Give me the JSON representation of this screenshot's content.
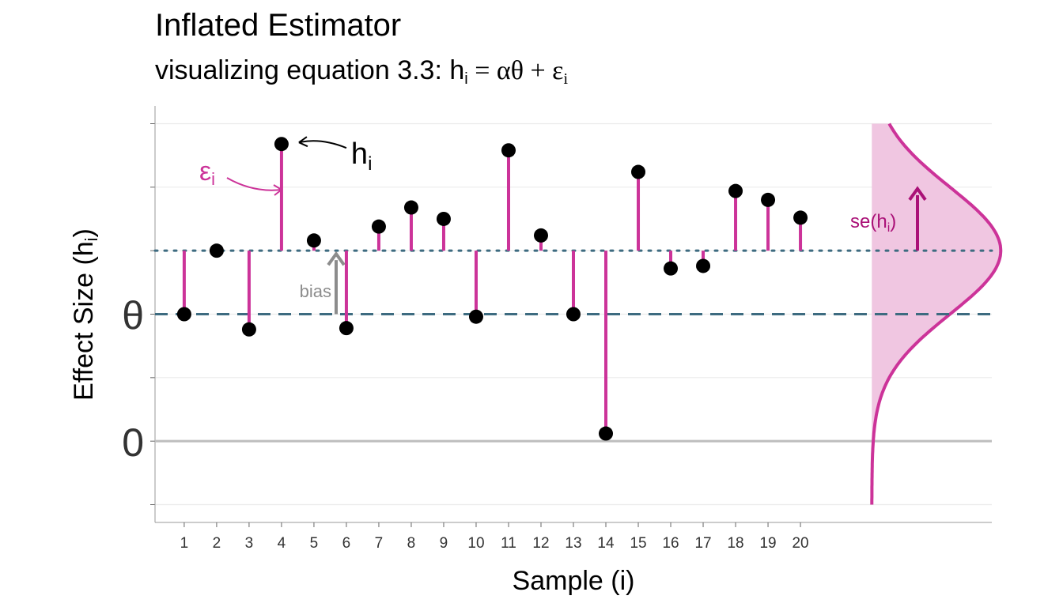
{
  "title": "Inflated Estimator",
  "subtitle": {
    "prefix": "visualizing equation 3.3: h",
    "sub_i": "i",
    "equation": " = αθ + ε",
    "sub_i2": "i"
  },
  "colors": {
    "point": "#000000",
    "error_segment": "#cc3399",
    "theta_line": "#3d6b80",
    "mean_line": "#3d6b80",
    "distribution_fill": "#f0c6e1",
    "distribution_stroke": "#cc3399",
    "se_arrow": "#aa1177",
    "bias_arrow": "#8c8c8c",
    "grid": "#ebebeb",
    "zero_line": "#bdbdbd"
  },
  "chart_data": {
    "type": "scatter",
    "title": "Inflated Estimator",
    "subtitle": "visualizing equation 3.3: hi = αθ + εi",
    "xlabel": "Sample (i)",
    "ylabel_main": "Effect Size (h",
    "ylabel_sub": "i",
    "ylabel_close": ")",
    "x": [
      1,
      2,
      3,
      4,
      5,
      6,
      7,
      8,
      9,
      10,
      11,
      12,
      13,
      14,
      15,
      16,
      17,
      18,
      19,
      20
    ],
    "x_tick_labels": [
      "1",
      "2",
      "3",
      "4",
      "5",
      "6",
      "7",
      "8",
      "9",
      "10",
      "11",
      "12",
      "13",
      "14",
      "15",
      "16",
      "17",
      "18",
      "19",
      "20"
    ],
    "y": [
      1.0,
      1.5,
      0.88,
      2.34,
      1.58,
      0.89,
      1.69,
      1.84,
      1.75,
      0.98,
      2.29,
      1.62,
      1.0,
      0.06,
      2.12,
      1.36,
      1.38,
      1.97,
      1.9,
      1.76
    ],
    "theta": 1.0,
    "inflated_mean": 1.5,
    "se": 0.5,
    "y_tick_labels": [
      {
        "value": 0,
        "label": "0"
      },
      {
        "value": 1,
        "label": "θ"
      }
    ],
    "ylim": [
      -0.64,
      2.64
    ],
    "xlim": [
      0.1,
      25.9
    ],
    "grid": true,
    "annotations": {
      "hi_label": "h",
      "hi_sub": "i",
      "eps_label": "ε",
      "eps_sub": "i",
      "bias_label": "bias",
      "se_label_pre": "se(h",
      "se_label_sub": "i",
      "se_label_post": ")"
    }
  }
}
